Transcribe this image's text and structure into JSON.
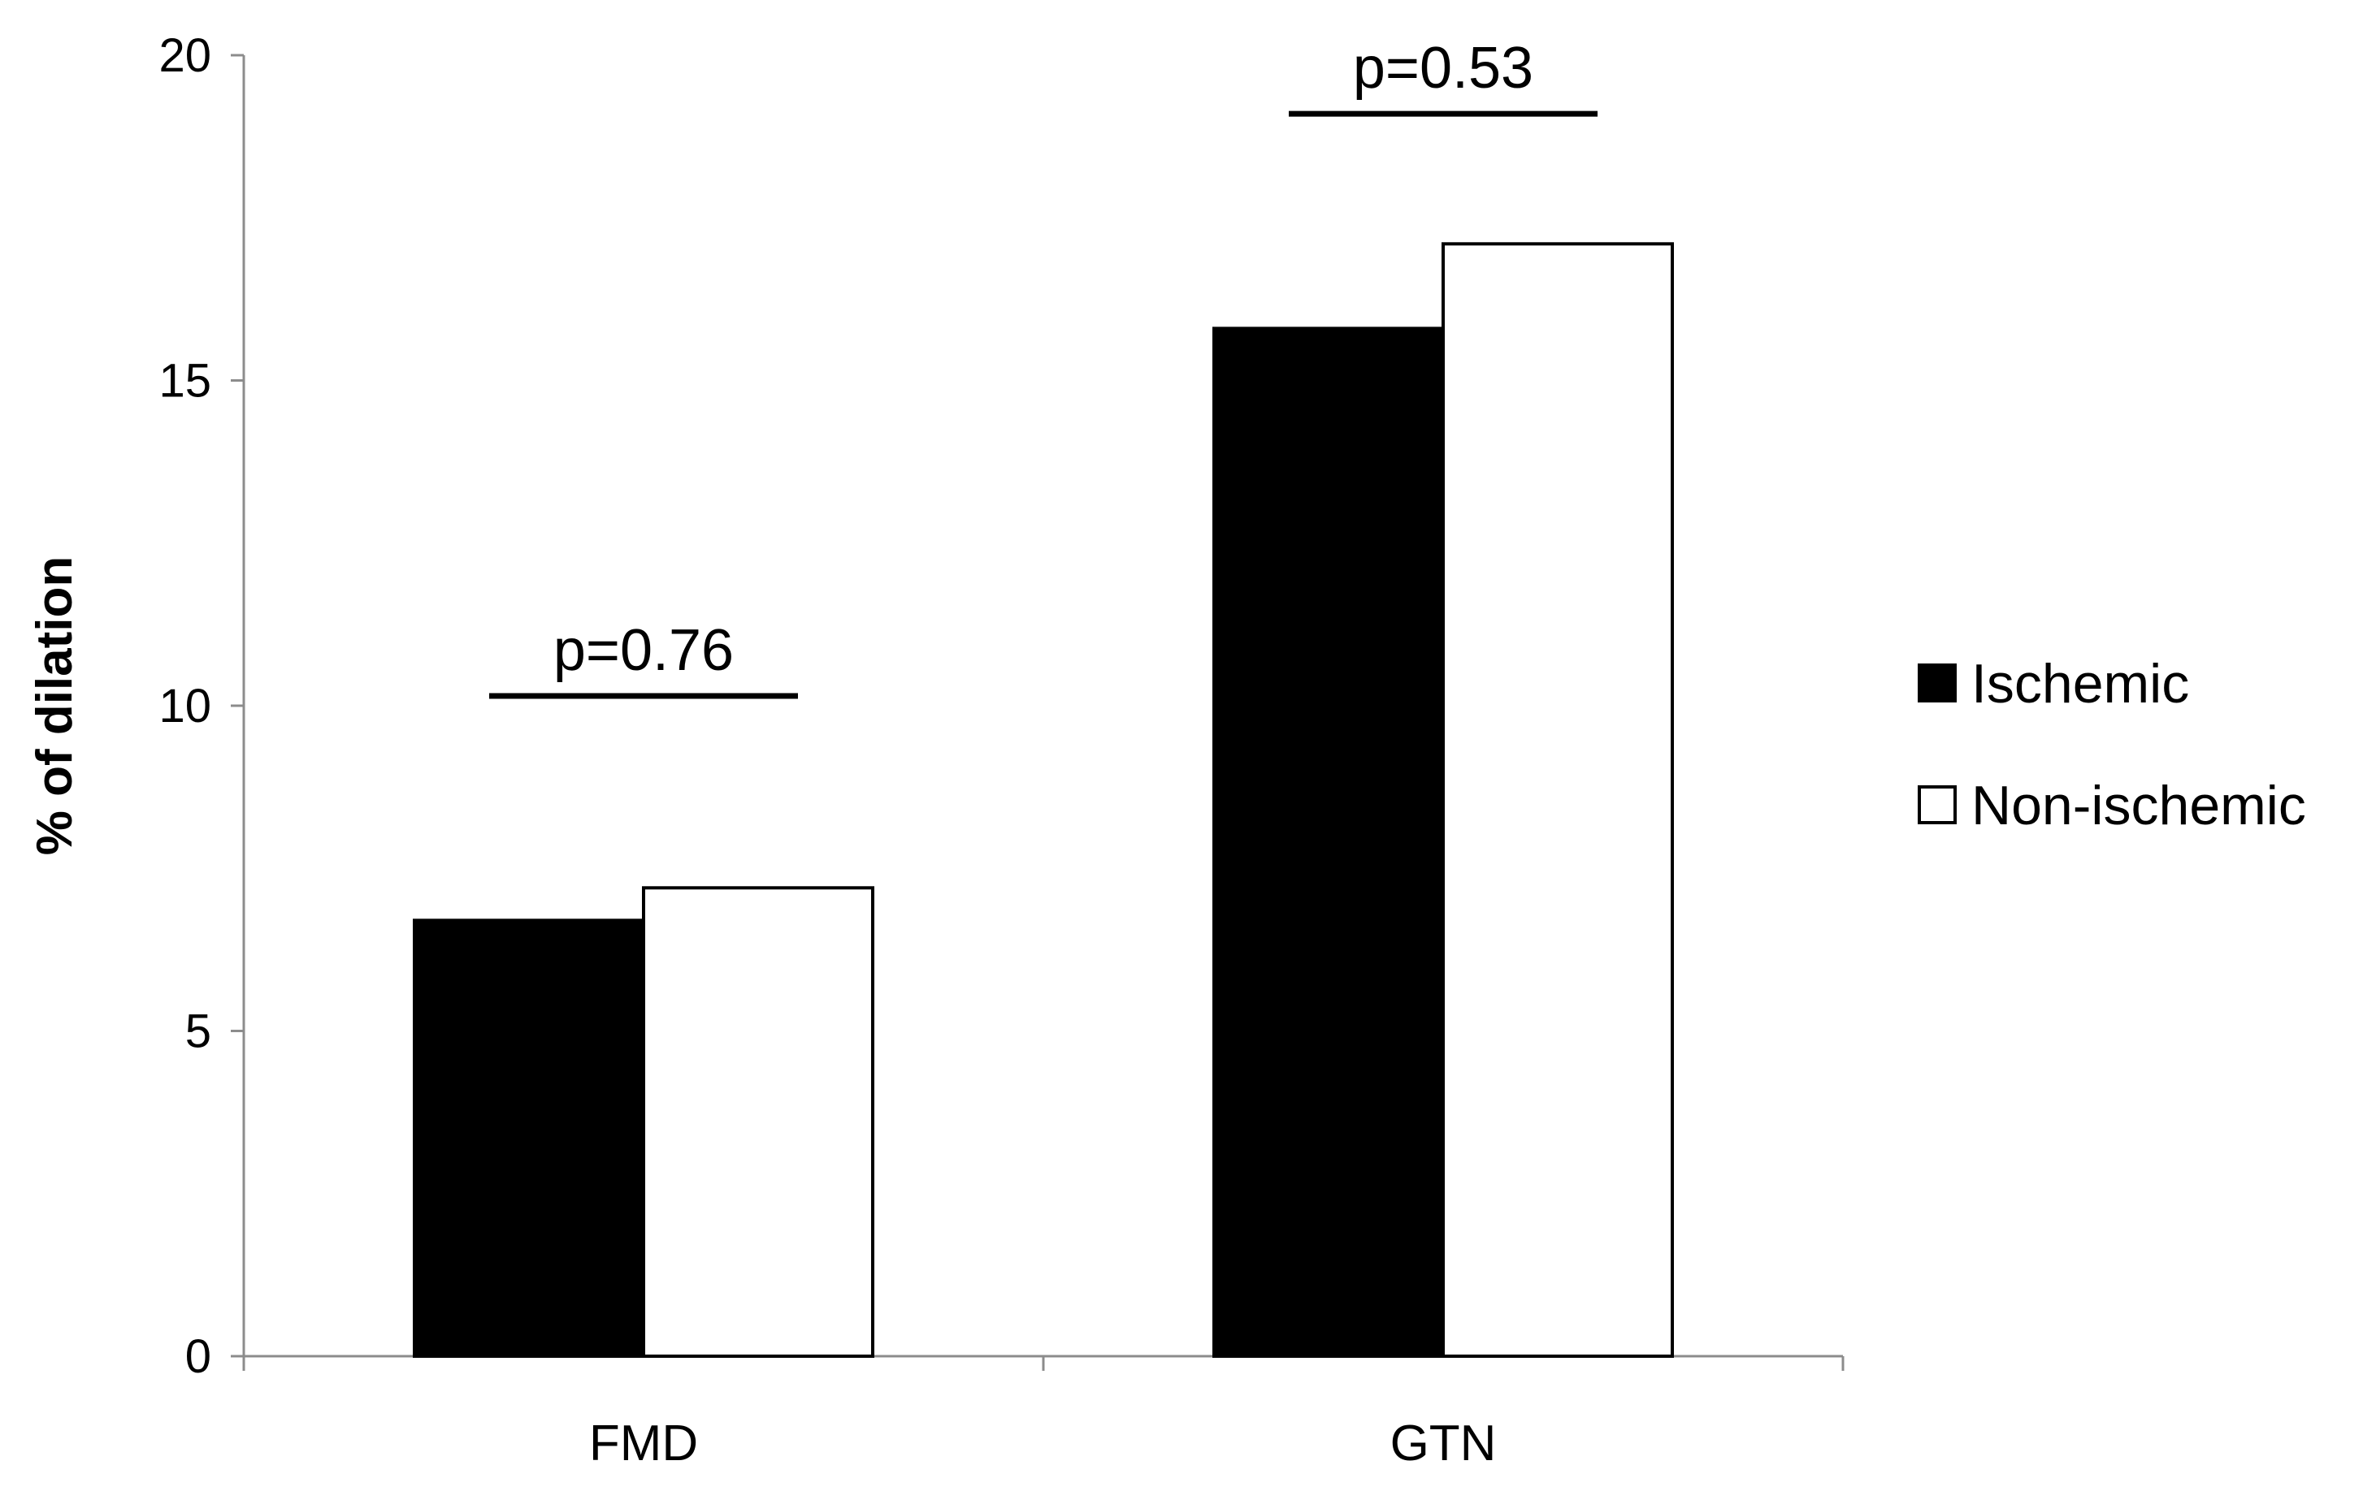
{
  "chart_data": {
    "type": "bar",
    "title": "",
    "xlabel": "",
    "ylabel": "% of dilation",
    "ylim": [
      0,
      20
    ],
    "yticks": [
      0,
      5,
      10,
      15,
      20
    ],
    "categories": [
      "FMD",
      "GTN"
    ],
    "series": [
      {
        "name": "Ischemic",
        "values": [
          6.7,
          15.8
        ],
        "color": "#000000"
      },
      {
        "name": "Non-ischemic",
        "values": [
          7.2,
          17.1
        ],
        "color": "#ffffff"
      }
    ],
    "annotations": [
      {
        "category": "FMD",
        "text": "p=0.76",
        "y": 10.15
      },
      {
        "category": "GTN",
        "text": "p=0.53",
        "y": 19.1
      }
    ],
    "legend": {
      "position": "right",
      "entries": [
        "Ischemic",
        "Non-ischemic"
      ]
    },
    "grid": false
  }
}
